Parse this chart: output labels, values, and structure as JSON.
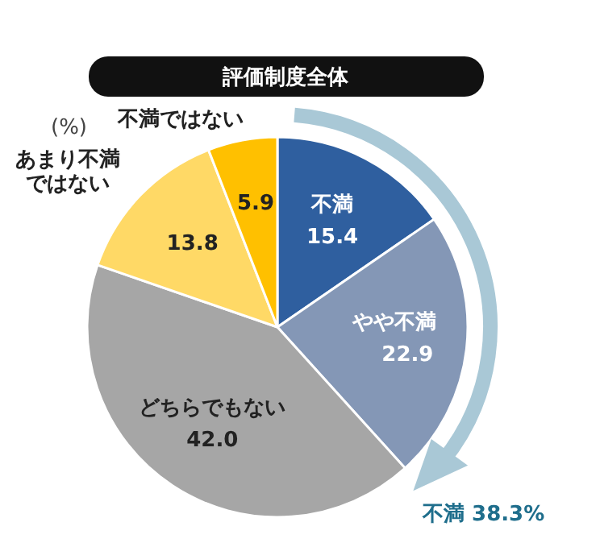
{
  "chart_data": {
    "type": "pie",
    "title": "評価制度全体",
    "categories": [
      "不満",
      "やや不満",
      "どちらでもない",
      "あまり不満ではない",
      "不満ではない"
    ],
    "values": [
      15.4,
      22.9,
      42.0,
      13.8,
      5.9
    ],
    "colors": [
      "#2f5f9f",
      "#8497b6",
      "#a6a6a6",
      "#ffd966",
      "#ffc000"
    ],
    "value_labels": [
      "15.4",
      "22.9",
      "42.0",
      "13.8",
      "5.9"
    ],
    "legend": false,
    "annotations": [
      "(%)",
      "不満 38.3%"
    ]
  }
}
